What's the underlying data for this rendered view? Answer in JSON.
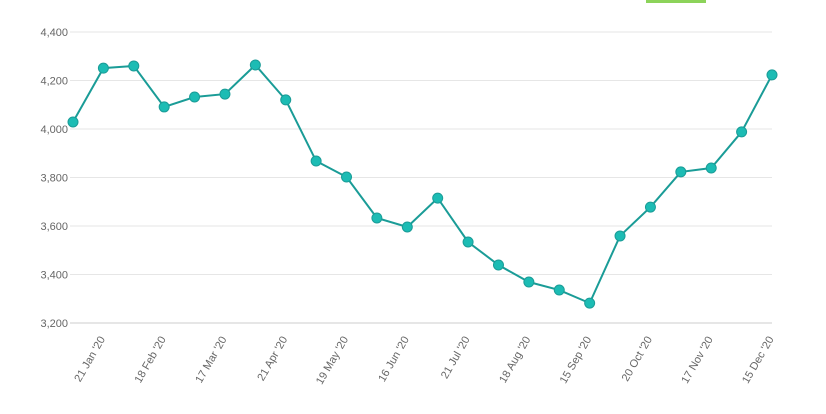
{
  "chart_data": {
    "type": "line",
    "categories": [
      null,
      "21 Jan '20",
      null,
      "18 Feb '20",
      null,
      "17 Mar '20",
      null,
      "21 Apr '20",
      null,
      "19 May '20",
      null,
      "16 Jun '20",
      null,
      "21 Jul '20",
      null,
      "18 Aug '20",
      null,
      "15 Sep '20",
      null,
      "20 Oct '20",
      null,
      "17 Nov '20",
      null,
      "15 Dec '20"
    ],
    "series": [
      {
        "color": "#1a9c97",
        "marker_color": "#1cbcb4",
        "values": [
          4029,
          4251,
          4260,
          4091,
          4132,
          4144,
          4264,
          4120,
          3868,
          3802,
          3633,
          3596,
          3715,
          3534,
          3439,
          3369,
          3336,
          3282,
          3559,
          3678,
          3823,
          3839,
          3988,
          4223
        ]
      }
    ],
    "ylim": [
      3200,
      4400
    ],
    "yticks": [
      {
        "value": 3200,
        "label": "3,200"
      },
      {
        "value": 3400,
        "label": "3,400"
      },
      {
        "value": 3600,
        "label": "3,600"
      },
      {
        "value": 3800,
        "label": "3,800"
      },
      {
        "value": 4000,
        "label": "4,000"
      },
      {
        "value": 4200,
        "label": "4,200"
      },
      {
        "value": 4400,
        "label": "4,400"
      }
    ],
    "grid": true
  }
}
